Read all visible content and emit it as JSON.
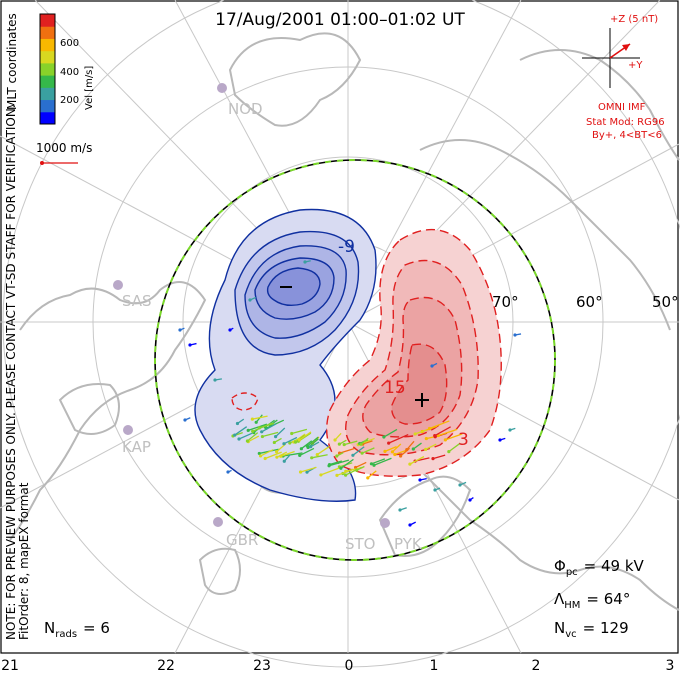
{
  "title": "17/Aug/2001 01:00–01:02 UT",
  "coord_label": "MLT coordinates",
  "colorbar": {
    "label": "Vel [m/s]",
    "ticks": [
      "600",
      "400",
      "200"
    ],
    "colors": [
      "#0000ff",
      "#2a6fcf",
      "#3aa0a0",
      "#35b84a",
      "#88d22a",
      "#d8d820",
      "#f8b800",
      "#f07010",
      "#e02020"
    ]
  },
  "scale_vector": {
    "label": "1000 m/s"
  },
  "side_note": "NOTE: FOR PREVIEW PURPOSES ONLY. PLEASE CONTACT VT-SD STAFF FOR VERIFICATION.",
  "fit_note": "FitOrder: 8, mapEX format",
  "imf": {
    "z_label": "+Z (5 nT)",
    "y_label": "+Y",
    "source": "OMNI IMF",
    "model": "Stat Mod: RG96",
    "condition": "By+, 4<BT<6"
  },
  "stats": {
    "phi_label": "Φ",
    "phi_sub": "pc",
    "phi_value": "= 49 kV",
    "lambda_label": "Λ",
    "lambda_sub": "HM",
    "lambda_value": "= 64°",
    "nvc_label": "N",
    "nvc_sub": "vc",
    "nvc_value": "= 129",
    "nrads_label": "N",
    "nrads_sub": "rads",
    "nrads_value": "= 6"
  },
  "lat_labels": [
    "70°",
    "60°",
    "50°"
  ],
  "contour_labels": {
    "neg": "-9",
    "pos1": "15",
    "pos2": "3"
  },
  "stations": [
    "NOD",
    "SAS",
    "KAP",
    "GBR",
    "STO",
    "PYK"
  ],
  "mlt_ticks": [
    "21",
    "22",
    "23",
    "0",
    "1",
    "2",
    "3"
  ],
  "colors": {
    "positive": "#e02020",
    "negative": "#1030a0",
    "grid": "#c8c8c8",
    "coast": "#b8b8b8",
    "hmb_green": "#7ad82a",
    "accent_red": "#e01010"
  }
}
